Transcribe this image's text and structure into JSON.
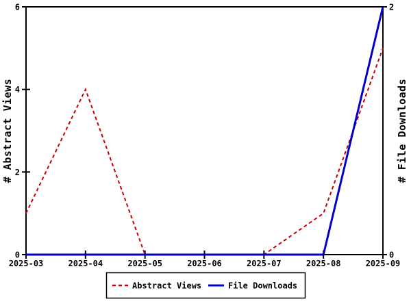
{
  "chart_data": {
    "type": "line",
    "categories": [
      "2025-03",
      "2025-04",
      "2025-05",
      "2025-06",
      "2025-07",
      "2025-08",
      "2025-09"
    ],
    "series": [
      {
        "name": "Abstract Views",
        "axis": "left",
        "color": "#cc0000",
        "style": "dashed",
        "values": [
          1,
          4,
          0,
          0,
          0,
          1,
          5
        ]
      },
      {
        "name": "File Downloads",
        "axis": "right",
        "color": "#0000cc",
        "style": "solid",
        "values": [
          0,
          0,
          0,
          0,
          0,
          0,
          2
        ]
      }
    ],
    "left_axis": {
      "label": "# Abstract Views",
      "min": 0,
      "max": 6,
      "ticks": [
        0,
        2,
        4,
        6
      ]
    },
    "right_axis": {
      "label": "# File Downloads",
      "min": 0,
      "max": 2,
      "ticks": [
        0,
        2
      ]
    },
    "legend": {
      "position": "bottom",
      "entries": [
        "Abstract Views",
        "File Downloads"
      ]
    },
    "grid": false,
    "background": "#ffffff",
    "axis_color": "#000000",
    "title": "",
    "xlabel": ""
  }
}
